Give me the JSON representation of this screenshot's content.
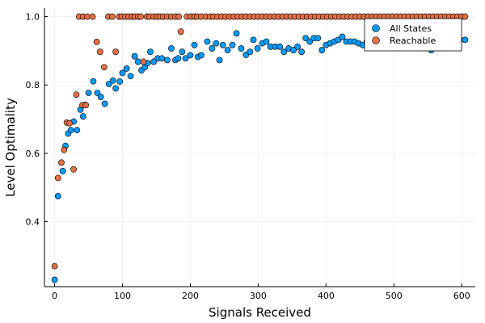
{
  "chart_data": {
    "type": "scatter",
    "title": "",
    "xlabel": "Signals Received",
    "ylabel": "Level Optimality",
    "xlim": [
      -15,
      620
    ],
    "ylim": [
      0.21,
      1.025
    ],
    "xticks": [
      0,
      100,
      200,
      300,
      400,
      500,
      600
    ],
    "yticks": [
      0.4,
      0.6,
      0.8,
      1.0
    ],
    "xtick_labels": [
      "0",
      "100",
      "200",
      "300",
      "400",
      "500",
      "600"
    ],
    "ytick_labels": [
      "0.4",
      "0.6",
      "0.8",
      "1.0"
    ],
    "grid": true,
    "legend_position": "top-right",
    "series": [
      {
        "name": "All States",
        "color": "#009AFA",
        "points": [
          [
            0,
            0.23
          ],
          [
            5,
            0.475
          ],
          [
            12,
            0.548
          ],
          [
            16,
            0.622
          ],
          [
            20,
            0.658
          ],
          [
            24,
            0.668
          ],
          [
            28,
            0.693
          ],
          [
            33,
            0.668
          ],
          [
            38,
            0.728
          ],
          [
            42,
            0.708
          ],
          [
            45,
            0.742
          ],
          [
            50,
            0.777
          ],
          [
            57,
            0.811
          ],
          [
            63,
            0.777
          ],
          [
            68,
            0.765
          ],
          [
            74,
            0.745
          ],
          [
            80,
            0.803
          ],
          [
            86,
            0.813
          ],
          [
            90,
            0.79
          ],
          [
            96,
            0.81
          ],
          [
            100,
            0.835
          ],
          [
            106,
            0.848
          ],
          [
            112,
            0.826
          ],
          [
            118,
            0.884
          ],
          [
            123,
            0.868
          ],
          [
            128,
            0.843
          ],
          [
            133,
            0.852
          ],
          [
            137,
            0.864
          ],
          [
            141,
            0.897
          ],
          [
            146,
            0.868
          ],
          [
            152,
            0.878
          ],
          [
            158,
            0.878
          ],
          [
            166,
            0.873
          ],
          [
            172,
            0.907
          ],
          [
            178,
            0.873
          ],
          [
            182,
            0.878
          ],
          [
            188,
            0.897
          ],
          [
            193,
            0.878
          ],
          [
            200,
            0.887
          ],
          [
            206,
            0.917
          ],
          [
            211,
            0.882
          ],
          [
            216,
            0.887
          ],
          [
            225,
            0.927
          ],
          [
            232,
            0.907
          ],
          [
            238,
            0.922
          ],
          [
            243,
            0.873
          ],
          [
            248,
            0.917
          ],
          [
            255,
            0.902
          ],
          [
            262,
            0.917
          ],
          [
            268,
            0.951
          ],
          [
            275,
            0.907
          ],
          [
            282,
            0.888
          ],
          [
            288,
            0.897
          ],
          [
            293,
            0.932
          ],
          [
            299,
            0.907
          ],
          [
            306,
            0.922
          ],
          [
            312,
            0.927
          ],
          [
            318,
            0.912
          ],
          [
            325,
            0.912
          ],
          [
            332,
            0.912
          ],
          [
            338,
            0.897
          ],
          [
            345,
            0.907
          ],
          [
            352,
            0.902
          ],
          [
            358,
            0.912
          ],
          [
            364,
            0.897
          ],
          [
            370,
            0.937
          ],
          [
            376,
            0.927
          ],
          [
            382,
            0.937
          ],
          [
            388,
            0.937
          ],
          [
            394,
            0.902
          ],
          [
            400,
            0.917
          ],
          [
            406,
            0.922
          ],
          [
            412,
            0.927
          ],
          [
            418,
            0.932
          ],
          [
            424,
            0.941
          ],
          [
            430,
            0.927
          ],
          [
            436,
            0.927
          ],
          [
            442,
            0.927
          ],
          [
            448,
            0.922
          ],
          [
            454,
            0.917
          ],
          [
            460,
            0.927
          ],
          [
            466,
            0.932
          ],
          [
            472,
            0.927
          ],
          [
            478,
            0.932
          ],
          [
            484,
            0.937
          ],
          [
            490,
            0.922
          ],
          [
            496,
            0.932
          ],
          [
            502,
            0.927
          ],
          [
            510,
            0.937
          ],
          [
            518,
            0.932
          ],
          [
            525,
            0.922
          ],
          [
            532,
            0.932
          ],
          [
            540,
            0.937
          ],
          [
            548,
            0.932
          ],
          [
            555,
            0.902
          ],
          [
            562,
            0.937
          ],
          [
            570,
            0.932
          ],
          [
            578,
            0.932
          ],
          [
            586,
            0.937
          ],
          [
            592,
            0.912
          ],
          [
            598,
            0.932
          ],
          [
            605,
            0.932
          ]
        ]
      },
      {
        "name": "Reachable",
        "color": "#E26F46",
        "points": [
          [
            0,
            0.27
          ],
          [
            5,
            0.528
          ],
          [
            10,
            0.573
          ],
          [
            14,
            0.61
          ],
          [
            18,
            0.69
          ],
          [
            22,
            0.688
          ],
          [
            28,
            0.553
          ],
          [
            32,
            0.772
          ],
          [
            36,
            1.0
          ],
          [
            41,
            0.741
          ],
          [
            42,
            1.0
          ],
          [
            46,
            0.741
          ],
          [
            48,
            1.0
          ],
          [
            56,
            1.0
          ],
          [
            62,
            0.926
          ],
          [
            67,
            0.897
          ],
          [
            73,
            0.852
          ],
          [
            79,
            1.0
          ],
          [
            85,
            1.0
          ],
          [
            90,
            0.897
          ],
          [
            95,
            1.0
          ],
          [
            99,
            1.0
          ],
          [
            104,
            1.0
          ],
          [
            109,
            1.0
          ],
          [
            114,
            1.0
          ],
          [
            118,
            1.0
          ],
          [
            123,
            1.0
          ],
          [
            127,
            1.0
          ],
          [
            131,
            0.868
          ],
          [
            136,
            1.0
          ],
          [
            140,
            1.0
          ],
          [
            146,
            1.0
          ],
          [
            151,
            1.0
          ],
          [
            155,
            1.0
          ],
          [
            160,
            1.0
          ],
          [
            166,
            1.0
          ],
          [
            172,
            1.0
          ],
          [
            178,
            1.0
          ],
          [
            183,
            1.0
          ],
          [
            186,
            0.956
          ],
          [
            195,
            1.0
          ],
          [
            201,
            1.0
          ],
          [
            206,
            1.0
          ],
          [
            210,
            1.0
          ],
          [
            216,
            1.0
          ],
          [
            223,
            1.0
          ],
          [
            229,
            1.0
          ],
          [
            234,
            1.0
          ],
          [
            240,
            1.0
          ],
          [
            246,
            1.0
          ],
          [
            252,
            1.0
          ],
          [
            258,
            1.0
          ],
          [
            264,
            1.0
          ],
          [
            270,
            1.0
          ],
          [
            276,
            1.0
          ],
          [
            282,
            1.0
          ],
          [
            288,
            1.0
          ],
          [
            294,
            1.0
          ],
          [
            300,
            1.0
          ],
          [
            306,
            1.0
          ],
          [
            312,
            1.0
          ],
          [
            318,
            1.0
          ],
          [
            324,
            1.0
          ],
          [
            330,
            1.0
          ],
          [
            336,
            1.0
          ],
          [
            342,
            1.0
          ],
          [
            348,
            1.0
          ],
          [
            354,
            1.0
          ],
          [
            360,
            1.0
          ],
          [
            366,
            1.0
          ],
          [
            372,
            1.0
          ],
          [
            378,
            1.0
          ],
          [
            384,
            1.0
          ],
          [
            390,
            1.0
          ],
          [
            396,
            1.0
          ],
          [
            402,
            1.0
          ],
          [
            408,
            1.0
          ],
          [
            414,
            1.0
          ],
          [
            420,
            1.0
          ],
          [
            426,
            1.0
          ],
          [
            432,
            1.0
          ],
          [
            438,
            1.0
          ],
          [
            444,
            1.0
          ],
          [
            450,
            1.0
          ],
          [
            456,
            1.0
          ],
          [
            462,
            1.0
          ],
          [
            468,
            1.0
          ],
          [
            474,
            1.0
          ],
          [
            480,
            1.0
          ],
          [
            486,
            1.0
          ],
          [
            492,
            1.0
          ],
          [
            498,
            1.0
          ],
          [
            504,
            1.0
          ],
          [
            510,
            1.0
          ],
          [
            516,
            1.0
          ],
          [
            522,
            1.0
          ],
          [
            528,
            1.0
          ],
          [
            534,
            1.0
          ],
          [
            540,
            1.0
          ],
          [
            546,
            1.0
          ],
          [
            552,
            1.0
          ],
          [
            558,
            1.0
          ],
          [
            564,
            1.0
          ],
          [
            570,
            1.0
          ],
          [
            576,
            1.0
          ],
          [
            582,
            1.0
          ],
          [
            588,
            1.0
          ],
          [
            594,
            1.0
          ],
          [
            600,
            1.0
          ],
          [
            605,
            1.0
          ]
        ]
      }
    ]
  }
}
